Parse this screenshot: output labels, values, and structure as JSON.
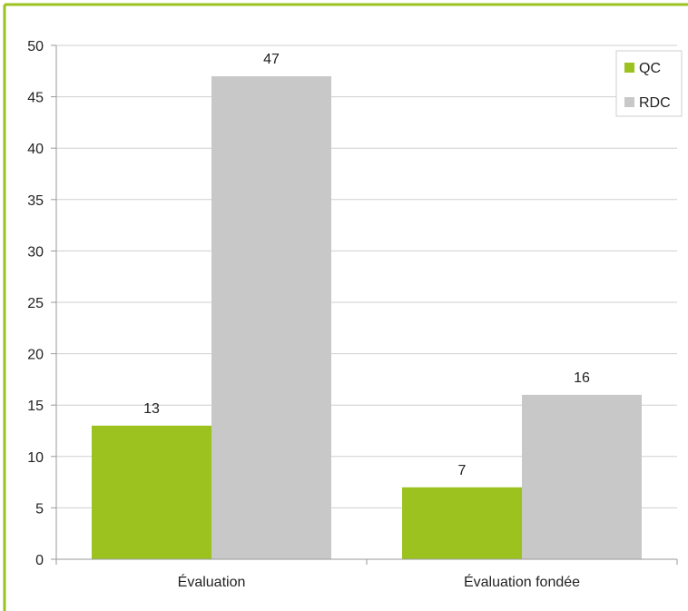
{
  "colors": {
    "frame": "#9bc21f",
    "grid": "#cfcfcf",
    "axis": "#9a9a9a",
    "text": "#222222"
  },
  "chart_data": {
    "type": "bar",
    "categories": [
      "Évaluation",
      "Évaluation fondée"
    ],
    "series": [
      {
        "name": "QC",
        "values": [
          13,
          7
        ],
        "color": "#9bc21f"
      },
      {
        "name": "RDC",
        "values": [
          47,
          16
        ],
        "color": "#c8c8c8"
      }
    ],
    "ylim": [
      0,
      50
    ],
    "yticks": [
      0,
      5,
      10,
      15,
      20,
      25,
      30,
      35,
      40,
      45,
      50
    ],
    "grid": true,
    "legend": "top-right",
    "data_labels": true
  }
}
